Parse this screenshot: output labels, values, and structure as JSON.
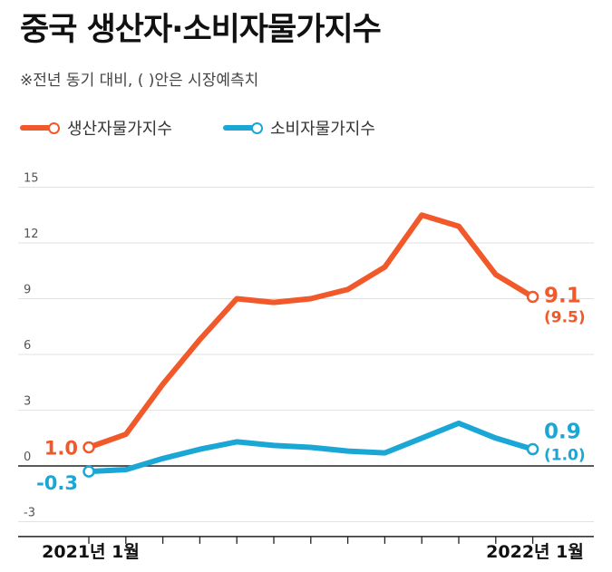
{
  "title": "중국 생산자·소비자물가지수",
  "subtitle": "※전년 동기 대비, ( )안은 시장예측치",
  "colors": {
    "producer": "#f2592a",
    "consumer": "#1aa7d6",
    "axis": "#222222",
    "grid": "#e2e2e2",
    "tick_text": "#555555"
  },
  "chart_data": {
    "type": "line",
    "x": [
      "2021-01",
      "2021-02",
      "2021-03",
      "2021-04",
      "2021-05",
      "2021-06",
      "2021-07",
      "2021-08",
      "2021-09",
      "2021-10",
      "2021-11",
      "2021-12",
      "2022-01"
    ],
    "xtick_labels": [
      "2021년 1월",
      "2022년 1월"
    ],
    "yticks": [
      "15",
      "12",
      "9",
      "6",
      "3",
      "0",
      "-3"
    ],
    "ylim": [
      -3,
      15
    ],
    "grid": true,
    "legend_position": "top-left",
    "series": [
      {
        "name": "생산자물가지수",
        "color": "#f2592a",
        "values": [
          1.0,
          1.7,
          4.4,
          6.8,
          9.0,
          8.8,
          9.0,
          9.5,
          10.7,
          13.5,
          12.9,
          10.3,
          9.1
        ],
        "start_label": "1.0",
        "end_label": "9.1",
        "end_forecast": "(9.5)"
      },
      {
        "name": "소비자물가지수",
        "color": "#1aa7d6",
        "values": [
          -0.3,
          -0.2,
          0.4,
          0.9,
          1.3,
          1.1,
          1.0,
          0.8,
          0.7,
          1.5,
          2.3,
          1.5,
          0.9
        ],
        "start_label": "-0.3",
        "end_label": "0.9",
        "end_forecast": "(1.0)"
      }
    ]
  }
}
